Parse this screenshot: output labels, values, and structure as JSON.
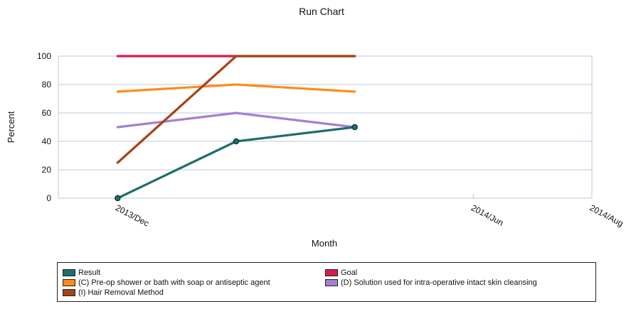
{
  "chart_data": {
    "type": "line",
    "title": "Run Chart",
    "xlabel": "Month",
    "ylabel": "Percent",
    "x_ticks": [
      "2013/Dec",
      "2014/Jun",
      "2014/Aug"
    ],
    "x_points": [
      "2013/Dec",
      "2014/Feb",
      "2014/Apr"
    ],
    "x_range": [
      "2013/Nov",
      "2014/Aug"
    ],
    "ylim": [
      0,
      100
    ],
    "yticks": [
      0,
      20,
      40,
      60,
      80,
      100
    ],
    "grid": true,
    "legend_position": "bottom",
    "series": [
      {
        "key": "result",
        "name": "Result",
        "color": "#1f6e6e",
        "values": [
          0,
          40,
          50
        ],
        "markers": true
      },
      {
        "key": "goal",
        "name": "Goal",
        "color": "#d81b4c",
        "values": [
          100,
          100,
          100
        ],
        "markers": false
      },
      {
        "key": "preop",
        "name": "(C) Pre-op shower or bath with soap or antiseptic agent",
        "color": "#ff8c1a",
        "values": [
          75,
          80,
          75
        ],
        "markers": false
      },
      {
        "key": "solution",
        "name": "(D) Solution used for intra-operative intact skin cleansing",
        "color": "#a47fd0",
        "values": [
          50,
          60,
          50
        ],
        "markers": false
      },
      {
        "key": "hair",
        "name": "(I) Hair Removal Method",
        "color": "#a5441a",
        "values": [
          25,
          100,
          100
        ],
        "markers": false
      }
    ]
  }
}
